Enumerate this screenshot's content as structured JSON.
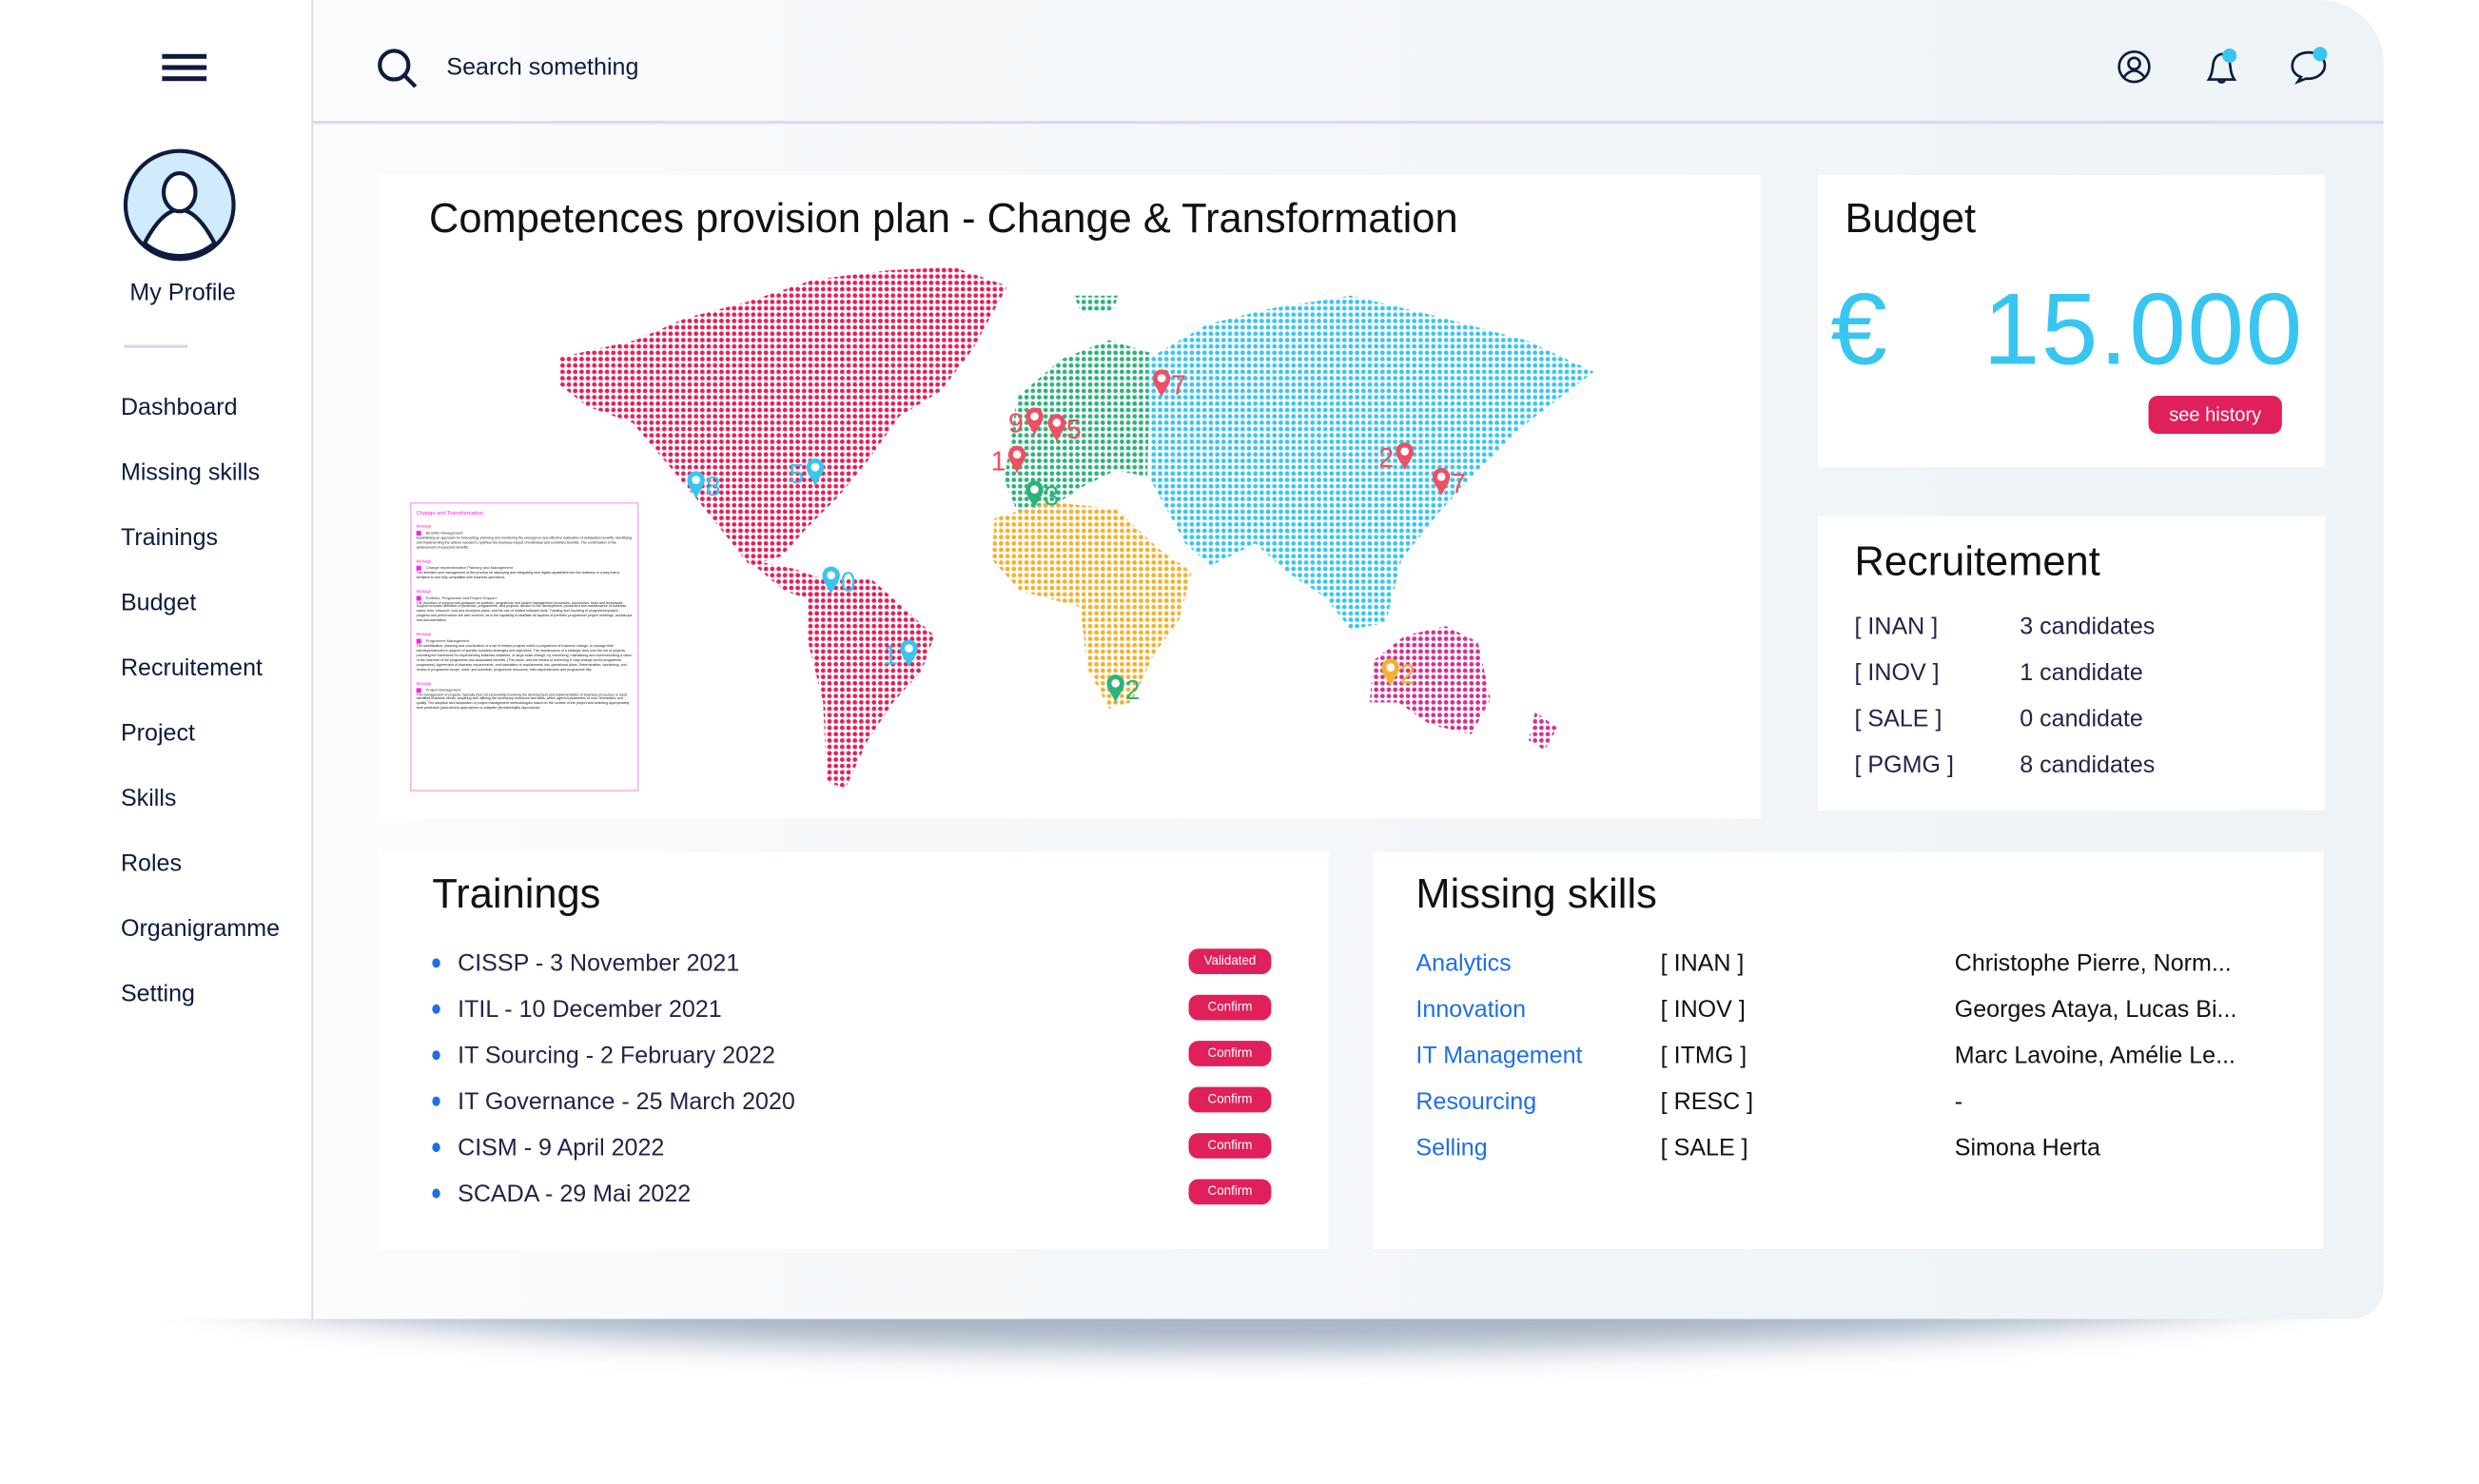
{
  "sidebar": {
    "menu_icon": "hamburger-icon",
    "profile_label": "My Profile",
    "items": [
      {
        "label": "Dashboard"
      },
      {
        "label": "Missing skills"
      },
      {
        "label": "Trainings"
      },
      {
        "label": "Budget"
      },
      {
        "label": "Recruitement"
      },
      {
        "label": "Project"
      },
      {
        "label": "Skills"
      },
      {
        "label": "Roles"
      },
      {
        "label": "Organigramme"
      },
      {
        "label": "Setting"
      }
    ]
  },
  "header": {
    "search_placeholder": "Search something",
    "icons": [
      "user-circle-icon",
      "bell-icon",
      "chat-bubble-icon"
    ],
    "notification_dot_color": "#38c6f0"
  },
  "map_card": {
    "title": "Competences provision plan - Change & Transformation",
    "region_colors": {
      "americas": "#e2215a",
      "europe": "#2db37a",
      "africa": "#f2b230",
      "asia": "#38c6f0",
      "oceania": "#d5308f"
    },
    "pins": [
      {
        "label": "8",
        "color": "#38c6f0"
      },
      {
        "label": "5",
        "color": "#38c6f0"
      },
      {
        "label": "0",
        "color": "#38c6f0"
      },
      {
        "label": "1",
        "color": "#38c6f0"
      },
      {
        "label": "1",
        "color": "#ef4f62"
      },
      {
        "label": "9",
        "color": "#ef4f62"
      },
      {
        "label": "5",
        "color": "#ef4f62"
      },
      {
        "label": "7",
        "color": "#ef4f62"
      },
      {
        "label": "2",
        "color": "#ef4f62"
      },
      {
        "label": "7",
        "color": "#ef4f62"
      },
      {
        "label": "3",
        "color": "#2db37a"
      },
      {
        "label": "2",
        "color": "#2db37a"
      },
      {
        "label": "2",
        "color": "#f2b230"
      }
    ],
    "document": {
      "title": "Change and Transformation",
      "sections": [
        {
          "tag": "Manage",
          "name": "Benefits Management",
          "text": "Establishing an approach for forecasting, planning and monitoring the emergence and effective realisation of anticipated benefits. Identifying and implementing the actions needed to optimise the business impact of individual and combined benefits. The confirmation of the achievement of expected benefits."
        },
        {
          "tag": "Manage",
          "name": "Change Implementation Planning and Management",
          "text": "The definition and management of the process for deploying and integrating new digital capabilities into the business in a way that is sensitive to and fully compatible with business operations."
        },
        {
          "tag": "Manage",
          "name": "Portfolio, Programme and Project Support",
          "text": "The provision of support and guidance on portfolio, programme and project management processes, procedures, tools and techniques. Support includes definition of portfolios, programmes, and projects; advice on the development, production and maintenance of business cases; time, resource, cost and exception plans, and the use of related software tools. Tracking and reporting of programme/project progress and performance are also covered, as is the capability to facilitate all aspects of portfolio/ programme/ project meetings, workshops and documentation."
        },
        {
          "tag": "Manage",
          "name": "Programme Management",
          "text": "The identification, planning and coordination of a set of related projects within a programme of business change, to manage their interdependencies in support of specific business strategies and objectives. The maintenance of a strategic view over the set of projects, providing the framework for implementing business initiatives, or large-scale change, by conceiving, maintaining and communicating a vision of the outcome of the programme and associated benefits. (The vision, and the means of achieving it, may change as the programme progresses). Agreement of business requirements, and translation of requirements into operational plans. Determination, monitoring, and review of programme scope, costs, and schedule, programme resources, inter-dependencies and programme risk."
        },
        {
          "tag": "Manage",
          "name": "Project Management",
          "text": "The management of projects, typically (but not exclusively) involving the development and implementation of business processes to meet identified business needs, acquiring and utilising the necessary resources and skills, within agreed parameters of cost, timescales, and quality. The adoption and adaptation of project management methodologies based on the context of the project and selecting appropriately from predictive (plan-driven) approaches or adaptive (iterative/agile) approaches."
        }
      ]
    }
  },
  "budget": {
    "title": "Budget",
    "currency": "€",
    "amount": "15.000",
    "history_button": "see history",
    "accent_color": "#38c6f0"
  },
  "recruitement": {
    "title": "Recruitement",
    "rows": [
      {
        "code": "[ INAN ]",
        "count": "3 candidates"
      },
      {
        "code": "[ INOV ]",
        "count": "1 candidate"
      },
      {
        "code": "[ SALE ]",
        "count": "0 candidate"
      },
      {
        "code": "[ PGMG ]",
        "count": "8 candidates"
      }
    ]
  },
  "trainings": {
    "title": "Trainings",
    "items": [
      {
        "label": "CISSP - 3 November 2021",
        "status": "Validated"
      },
      {
        "label": "ITIL - 10 December 2021",
        "status": "Confirm"
      },
      {
        "label": "IT Sourcing - 2 February 2022",
        "status": "Confirm"
      },
      {
        "label": "IT Governance - 25 March 2020",
        "status": "Confirm"
      },
      {
        "label": "CISM - 9 April 2022",
        "status": "Confirm"
      },
      {
        "label": "SCADA - 29 Mai 2022",
        "status": "Confirm"
      }
    ]
  },
  "missing_skills": {
    "title": "Missing skills",
    "rows": [
      {
        "skill": "Analytics",
        "code": "[ INAN ]",
        "people": "Christophe Pierre, Norm..."
      },
      {
        "skill": "Innovation",
        "code": "[ INOV ]",
        "people": "Georges Ataya, Lucas Bi..."
      },
      {
        "skill": "IT Management",
        "code": "[ ITMG ]",
        "people": "Marc Lavoine, Amélie Le..."
      },
      {
        "skill": "Resourcing",
        "code": "[ RESC ]",
        "people": "-"
      },
      {
        "skill": "Selling",
        "code": "[ SALE ]",
        "people": "Simona Herta"
      }
    ]
  }
}
